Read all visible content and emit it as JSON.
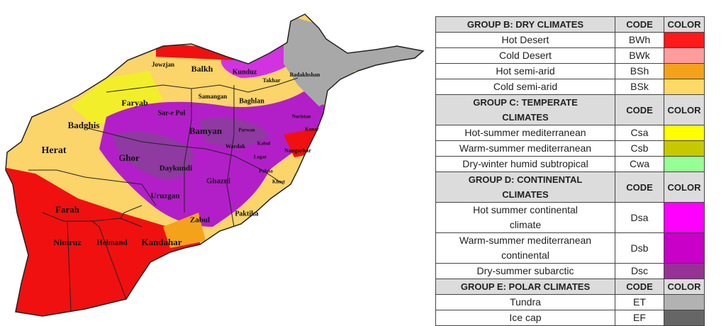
{
  "map": {
    "labels": [
      "Jowzjan",
      "Balkh",
      "Kunduz",
      "Badakhshan",
      "Takhar",
      "Samangan",
      "Baghlan",
      "Faryab",
      "Sar-e Pol",
      "Badghis",
      "Bamyan",
      "Parwan",
      "Nuristan",
      "Kunar",
      "Nangarhar",
      "Kabul",
      "Wardak",
      "Logar",
      "Paktia",
      "Khost",
      "Herat",
      "Ghor",
      "Daykundi",
      "Ghazni",
      "Uruzgan",
      "Paktika",
      "Zabul",
      "Farah",
      "Nimruz",
      "Helmand",
      "Kandahar"
    ]
  },
  "legend": {
    "groups": [
      {
        "title": "GROUP B: DRY CLIMATES",
        "code_header": "CODE",
        "color_header": "COLOR",
        "rows": [
          {
            "name": "Hot Desert",
            "code": "BWh",
            "color": "#ff1a1a"
          },
          {
            "name": "Cold Desert",
            "code": "BWk",
            "color": "#ff9c9c"
          },
          {
            "name": "Hot semi-arid",
            "code": "BSh",
            "color": "#f5a21b"
          },
          {
            "name": "Cold semi-arid",
            "code": "BSk",
            "color": "#ffd966"
          }
        ]
      },
      {
        "title": "GROUP C: TEMPERATE CLIMATES",
        "code_header": "CODE",
        "color_header": "COLOR",
        "rows": [
          {
            "name": "Hot-summer mediterranean",
            "code": "Csa",
            "color": "#ffff00"
          },
          {
            "name": "Warm-summer mediterranean",
            "code": "Csb",
            "color": "#c8c800"
          },
          {
            "name": "Dry-winter humid subtropical",
            "code": "Cwa",
            "color": "#96ff96"
          }
        ]
      },
      {
        "title": "GROUP D: CONTINENTAL CLIMATES",
        "code_header": "CODE",
        "color_header": "COLOR",
        "rows": [
          {
            "name": "Hot summer continental climate",
            "code": "Dsa",
            "color": "#ff00ff"
          },
          {
            "name": "Warm-summer mediterranean continental",
            "code": "Dsb",
            "color": "#c800c8"
          },
          {
            "name": "Dry-summer subarctic",
            "code": "Dsc",
            "color": "#963296"
          }
        ]
      },
      {
        "title": "GROUP E: POLAR CLIMATES",
        "code_header": "CODE",
        "color_header": "COLOR",
        "rows": [
          {
            "name": "Tundra",
            "code": "ET",
            "color": "#b2b2b2"
          },
          {
            "name": "Ice cap",
            "code": "EF",
            "color": "#666666"
          }
        ]
      }
    ]
  }
}
